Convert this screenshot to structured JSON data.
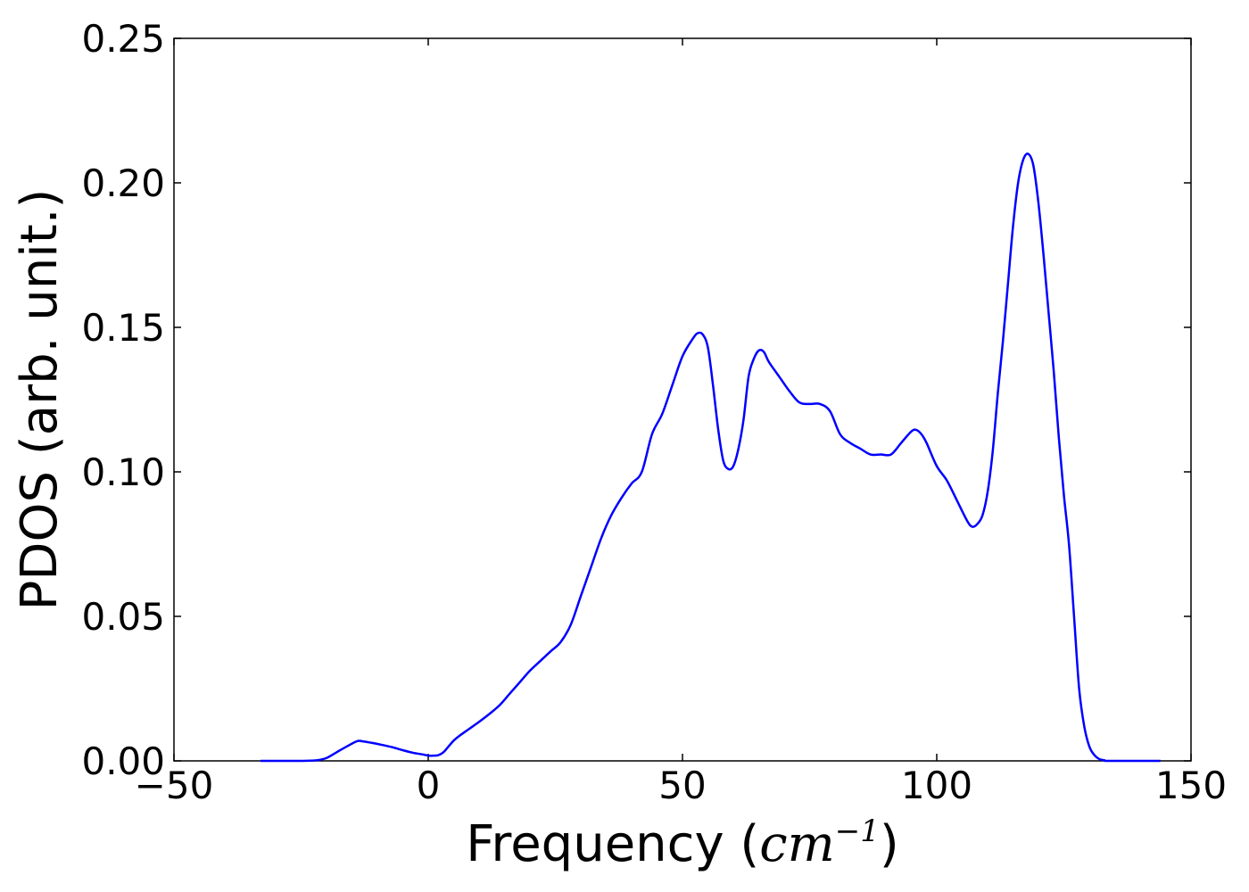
{
  "chart_data": {
    "type": "line",
    "title": "",
    "xlabel": "Frequency (",
    "xlabel_math": "cm",
    "xlabel_exp": "−1",
    "xlabel_close": ")",
    "ylabel": "PDOS (arb. unit.)",
    "xlim": [
      -50,
      150
    ],
    "ylim": [
      0,
      0.25
    ],
    "xticks": [
      -50,
      0,
      50,
      100,
      150
    ],
    "xtick_labels": [
      "−50",
      "0",
      "50",
      "100",
      "150"
    ],
    "yticks": [
      0,
      0.05,
      0.1,
      0.15,
      0.2,
      0.25
    ],
    "ytick_labels": [
      "0.00",
      "0.05",
      "0.10",
      "0.15",
      "0.20",
      "0.25"
    ],
    "grid": false,
    "line_color": "#0000ff",
    "series": [
      {
        "x": [
          -33,
          -25,
          -22,
          -20,
          -18,
          -16,
          -14,
          -13,
          -11,
          -9,
          -7,
          -5,
          -3,
          -1,
          0,
          1,
          2,
          3,
          4,
          5,
          6,
          8,
          10,
          12,
          14,
          16,
          18,
          20,
          22,
          24,
          26,
          28,
          30,
          32,
          34,
          36,
          38,
          40,
          42,
          44,
          46,
          48,
          50,
          52,
          53,
          54,
          55,
          56,
          57,
          58,
          59,
          60,
          61,
          62,
          63,
          64,
          65,
          66,
          67,
          69,
          71,
          73,
          75,
          77,
          79,
          81,
          83,
          85,
          87,
          89,
          91,
          93,
          95,
          96,
          97,
          98,
          100,
          102,
          104,
          106,
          107,
          108,
          109,
          110,
          111,
          112,
          113,
          114,
          115,
          116,
          117,
          118,
          119,
          120,
          121,
          122,
          123,
          124,
          125,
          126,
          127,
          128,
          129,
          130,
          131,
          132,
          133,
          134,
          144
        ],
        "y": [
          0.0,
          0.0,
          0.0002,
          0.001,
          0.003,
          0.005,
          0.0068,
          0.0068,
          0.0062,
          0.0055,
          0.0047,
          0.0037,
          0.0028,
          0.0022,
          0.0018,
          0.0018,
          0.002,
          0.003,
          0.005,
          0.007,
          0.0085,
          0.011,
          0.0135,
          0.0162,
          0.0192,
          0.0232,
          0.0272,
          0.0312,
          0.0345,
          0.0378,
          0.041,
          0.047,
          0.057,
          0.067,
          0.077,
          0.085,
          0.091,
          0.096,
          0.1,
          0.113,
          0.12,
          0.13,
          0.14,
          0.146,
          0.148,
          0.1475,
          0.143,
          0.13,
          0.115,
          0.104,
          0.101,
          0.102,
          0.108,
          0.118,
          0.133,
          0.139,
          0.142,
          0.1415,
          0.138,
          0.133,
          0.128,
          0.124,
          0.1235,
          0.1235,
          0.121,
          0.113,
          0.11,
          0.108,
          0.106,
          0.106,
          0.106,
          0.11,
          0.114,
          0.1145,
          0.113,
          0.11,
          0.102,
          0.097,
          0.09,
          0.083,
          0.081,
          0.082,
          0.085,
          0.093,
          0.107,
          0.127,
          0.145,
          0.165,
          0.185,
          0.2,
          0.208,
          0.21,
          0.206,
          0.193,
          0.175,
          0.155,
          0.135,
          0.112,
          0.092,
          0.075,
          0.05,
          0.025,
          0.012,
          0.005,
          0.002,
          0.0006,
          0.0002,
          0.0,
          0.0
        ]
      }
    ]
  }
}
